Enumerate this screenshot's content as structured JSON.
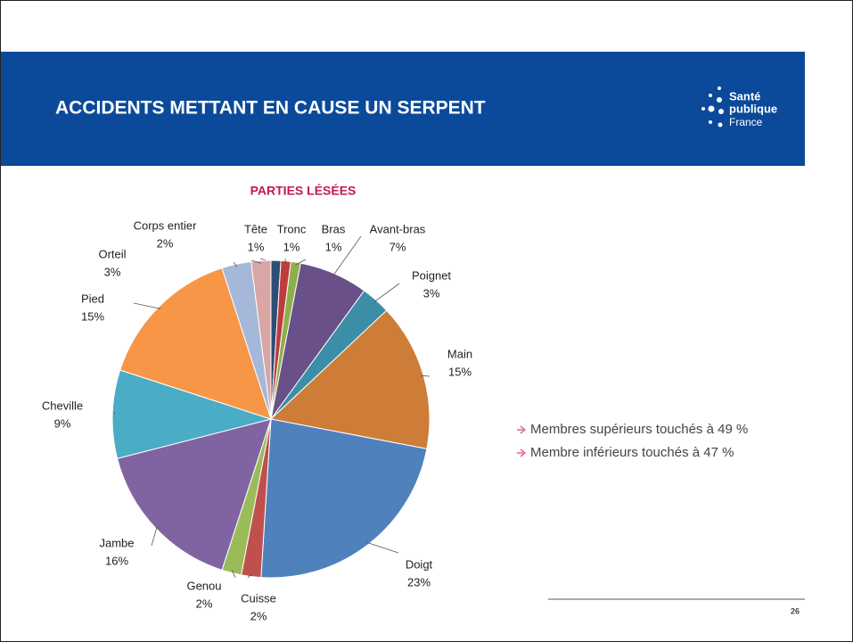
{
  "slide_title": "ACCIDENTS METTANT EN CAUSE UN SERPENT",
  "logo": {
    "line1": "Santé",
    "line2": "publique",
    "line3": "France"
  },
  "bullets": [
    "Membres supérieurs touchés à 49 %",
    "Membre inférieurs touchés à 47 %"
  ],
  "page_number": "26",
  "chart_data": {
    "type": "pie",
    "title": "PARTIES LÉSÉES",
    "categories": [
      "Tête",
      "Tronc",
      "Bras",
      "Avant-bras",
      "Poignet",
      "Main",
      "Doigt",
      "Cuisse",
      "Genou",
      "Jambe",
      "Cheville",
      "Pied",
      "Orteil",
      "Corps entier"
    ],
    "values": [
      1,
      1,
      1,
      7,
      3,
      15,
      23,
      2,
      2,
      16,
      9,
      15,
      3,
      2
    ],
    "value_labels": [
      "1%",
      "1%",
      "1%",
      "7%",
      "3%",
      "15%",
      "23%",
      "2%",
      "2%",
      "16%",
      "9%",
      "15%",
      "3%",
      "2%"
    ],
    "colors": [
      "#2c4d75",
      "#be3c3c",
      "#8db04e",
      "#6a5088",
      "#3b8ea5",
      "#cd7d37",
      "#4f81bd",
      "#c0504d",
      "#9bbb59",
      "#8064a2",
      "#4bacc6",
      "#f79646",
      "#a5b8d9",
      "#d9a6a6"
    ]
  }
}
